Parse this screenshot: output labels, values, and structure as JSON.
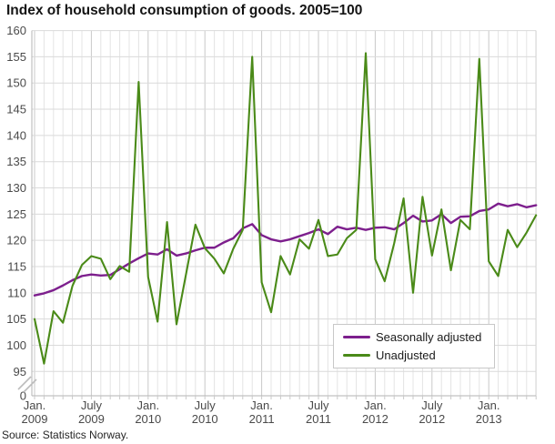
{
  "title": "Index of household consumption of goods. 2005=100",
  "source": "Source: Statistics Norway.",
  "chart_data": {
    "type": "line",
    "title": "Index of household consumption of goods. 2005=100",
    "grid": true,
    "legend_position": "bottom-right-inside",
    "y_axis": {
      "ticks": [
        160,
        155,
        150,
        145,
        140,
        135,
        130,
        125,
        120,
        115,
        110,
        105,
        100,
        95
      ],
      "break_label": "0",
      "range_shown": [
        95,
        160
      ],
      "has_axis_break": true
    },
    "x_axis": {
      "ticks": [
        {
          "index": 0,
          "month": "Jan.",
          "year": "2009"
        },
        {
          "index": 6,
          "month": "July",
          "year": "2009"
        },
        {
          "index": 12,
          "month": "Jan.",
          "year": "2010"
        },
        {
          "index": 18,
          "month": "July",
          "year": "2010"
        },
        {
          "index": 24,
          "month": "Jan.",
          "year": "2011"
        },
        {
          "index": 30,
          "month": "July",
          "year": "2011"
        },
        {
          "index": 36,
          "month": "Jan.",
          "year": "2012"
        },
        {
          "index": 42,
          "month": "July",
          "year": "2012"
        },
        {
          "index": 48,
          "month": "Jan.",
          "year": "2013"
        }
      ]
    },
    "months": [
      "Jan 2009",
      "Feb 2009",
      "Mar 2009",
      "Apr 2009",
      "May 2009",
      "Jun 2009",
      "Jul 2009",
      "Aug 2009",
      "Sep 2009",
      "Oct 2009",
      "Nov 2009",
      "Dec 2009",
      "Jan 2010",
      "Feb 2010",
      "Mar 2010",
      "Apr 2010",
      "May 2010",
      "Jun 2010",
      "Jul 2010",
      "Aug 2010",
      "Sep 2010",
      "Oct 2010",
      "Nov 2010",
      "Dec 2010",
      "Jan 2011",
      "Feb 2011",
      "Mar 2011",
      "Apr 2011",
      "May 2011",
      "Jun 2011",
      "Jul 2011",
      "Aug 2011",
      "Sep 2011",
      "Oct 2011",
      "Nov 2011",
      "Dec 2011",
      "Jan 2012",
      "Feb 2012",
      "Mar 2012",
      "Apr 2012",
      "May 2012",
      "Jun 2012",
      "Jul 2012",
      "Aug 2012",
      "Sep 2012",
      "Oct 2012",
      "Nov 2012",
      "Dec 2012",
      "Jan 2013",
      "Feb 2013",
      "Mar 2013",
      "Apr 2013",
      "May 2013",
      "Jun 2013"
    ],
    "series": [
      {
        "name": "Seasonally adjusted",
        "color": "#7d1f8d",
        "values": [
          109.5,
          109.9,
          110.5,
          111.4,
          112.4,
          113.2,
          113.5,
          113.3,
          113.4,
          114.5,
          115.6,
          116.6,
          117.5,
          117.3,
          118.3,
          117.1,
          117.5,
          118.1,
          118.6,
          118.6,
          119.6,
          120.4,
          122.3,
          123.1,
          121.0,
          120.2,
          119.8,
          120.2,
          120.8,
          121.4,
          122.1,
          121.2,
          122.6,
          122.1,
          122.4,
          122.0,
          122.4,
          122.5,
          122.1,
          123.3,
          124.7,
          123.6,
          123.8,
          125.0,
          123.3,
          124.5,
          124.6,
          125.6,
          125.9,
          127.0,
          126.5,
          126.9,
          126.3,
          126.7
        ]
      },
      {
        "name": "Unadjusted",
        "color": "#4a8a18",
        "values": [
          105.0,
          96.5,
          106.5,
          104.3,
          111.3,
          115.3,
          117.0,
          116.5,
          112.6,
          115.1,
          114.0,
          150.2,
          113.0,
          104.5,
          123.5,
          104.0,
          113.5,
          123.0,
          118.5,
          116.5,
          113.7,
          118.4,
          122.0,
          155.0,
          112.0,
          106.3,
          117.0,
          113.5,
          120.2,
          118.4,
          123.9,
          117.0,
          117.3,
          120.4,
          122.0,
          155.7,
          116.4,
          112.2,
          119.4,
          128.0,
          110.0,
          128.3,
          117.1,
          125.9,
          114.3,
          123.9,
          122.1,
          154.6,
          116.0,
          113.2,
          122.0,
          118.7,
          121.5,
          124.8
        ]
      }
    ]
  }
}
